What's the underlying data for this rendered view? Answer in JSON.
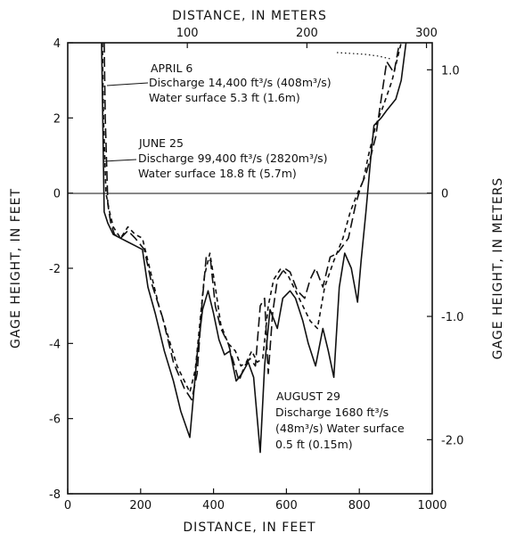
{
  "chart_data": {
    "type": "line",
    "xlabel": "DISTANCE, IN FEET",
    "ylabel": "GAGE HEIGHT, IN FEET",
    "x2label": "DISTANCE, IN METERS",
    "y2label": "GAGE HEIGHT, IN METERS",
    "xlim": [
      0,
      1000
    ],
    "ylim": [
      -8,
      4
    ],
    "xticks": [
      "0",
      "200",
      "400",
      "600",
      "800",
      "1000"
    ],
    "yticks": [
      "-8",
      "-6",
      "-4",
      "-2",
      "0",
      "2",
      "4"
    ],
    "x2ticks": [
      "100",
      "200",
      "300"
    ],
    "y2ticks": [
      "1.0",
      "0",
      "-1.0",
      "-2.0"
    ],
    "grid": false,
    "series": [
      {
        "name": "APRIL 6",
        "style": "dash-long",
        "points": [
          [
            100,
            4
          ],
          [
            103,
            2
          ],
          [
            110,
            -0.3
          ],
          [
            118,
            -0.8
          ],
          [
            128,
            -1.1
          ],
          [
            145,
            -1.2
          ],
          [
            165,
            -1.0
          ],
          [
            185,
            -1.2
          ],
          [
            210,
            -1.5
          ],
          [
            230,
            -2.4
          ],
          [
            260,
            -3.3
          ],
          [
            290,
            -4.5
          ],
          [
            320,
            -5.2
          ],
          [
            340,
            -5.5
          ],
          [
            355,
            -4.8
          ],
          [
            368,
            -3.0
          ],
          [
            380,
            -1.7
          ],
          [
            392,
            -1.8
          ],
          [
            405,
            -3.0
          ],
          [
            420,
            -3.6
          ],
          [
            440,
            -4.0
          ],
          [
            455,
            -4.5
          ],
          [
            470,
            -5.0
          ],
          [
            485,
            -4.6
          ],
          [
            500,
            -4.4
          ],
          [
            515,
            -4.6
          ],
          [
            528,
            -3.0
          ],
          [
            540,
            -2.8
          ],
          [
            550,
            -4.8
          ],
          [
            562,
            -3.2
          ],
          [
            575,
            -2.3
          ],
          [
            595,
            -2.0
          ],
          [
            610,
            -2.1
          ],
          [
            630,
            -2.6
          ],
          [
            650,
            -2.8
          ],
          [
            665,
            -2.3
          ],
          [
            680,
            -2.0
          ],
          [
            700,
            -2.5
          ],
          [
            720,
            -1.7
          ],
          [
            740,
            -1.6
          ],
          [
            770,
            -1.2
          ],
          [
            790,
            -0.3
          ],
          [
            805,
            0.2
          ],
          [
            818,
            0.5
          ],
          [
            832,
            1.0
          ],
          [
            845,
            1.5
          ],
          [
            860,
            2.5
          ],
          [
            875,
            3.5
          ],
          [
            895,
            3.2
          ],
          [
            910,
            4
          ]
        ]
      },
      {
        "name": "JUNE 25",
        "style": "dash-short",
        "points": [
          [
            95,
            4
          ],
          [
            98,
            2
          ],
          [
            105,
            0
          ],
          [
            115,
            -0.5
          ],
          [
            125,
            -0.9
          ],
          [
            145,
            -1.2
          ],
          [
            165,
            -0.9
          ],
          [
            185,
            -1.1
          ],
          [
            205,
            -1.2
          ],
          [
            225,
            -2.0
          ],
          [
            250,
            -3.0
          ],
          [
            275,
            -3.8
          ],
          [
            300,
            -4.6
          ],
          [
            320,
            -5.0
          ],
          [
            335,
            -5.3
          ],
          [
            350,
            -4.7
          ],
          [
            362,
            -3.5
          ],
          [
            375,
            -2.2
          ],
          [
            390,
            -1.6
          ],
          [
            405,
            -2.5
          ],
          [
            420,
            -3.5
          ],
          [
            440,
            -4.0
          ],
          [
            460,
            -4.2
          ],
          [
            475,
            -4.6
          ],
          [
            490,
            -4.5
          ],
          [
            505,
            -4.2
          ],
          [
            520,
            -4.5
          ],
          [
            535,
            -4.4
          ],
          [
            550,
            -3.0
          ],
          [
            565,
            -2.3
          ],
          [
            585,
            -2.0
          ],
          [
            605,
            -2.2
          ],
          [
            625,
            -2.6
          ],
          [
            645,
            -3.0
          ],
          [
            665,
            -3.4
          ],
          [
            685,
            -3.6
          ],
          [
            705,
            -2.5
          ],
          [
            730,
            -1.8
          ],
          [
            755,
            -1.2
          ],
          [
            775,
            -0.5
          ],
          [
            795,
            0
          ],
          [
            810,
            0.3
          ],
          [
            825,
            1.0
          ],
          [
            845,
            1.8
          ],
          [
            865,
            2.3
          ],
          [
            890,
            3.0
          ],
          [
            915,
            4
          ]
        ]
      },
      {
        "name": "AUGUST 29",
        "style": "solid",
        "points": [
          [
            93,
            4
          ],
          [
            96,
            2
          ],
          [
            100,
            -0.5
          ],
          [
            110,
            -0.8
          ],
          [
            125,
            -1.1
          ],
          [
            145,
            -1.2
          ],
          [
            165,
            -1.3
          ],
          [
            185,
            -1.4
          ],
          [
            205,
            -1.5
          ],
          [
            220,
            -2.5
          ],
          [
            240,
            -3.2
          ],
          [
            265,
            -4.2
          ],
          [
            290,
            -5.0
          ],
          [
            310,
            -5.8
          ],
          [
            335,
            -6.5
          ],
          [
            355,
            -4.3
          ],
          [
            370,
            -3.1
          ],
          [
            385,
            -2.6
          ],
          [
            400,
            -3.2
          ],
          [
            415,
            -3.9
          ],
          [
            430,
            -4.3
          ],
          [
            445,
            -4.2
          ],
          [
            462,
            -5.0
          ],
          [
            478,
            -4.8
          ],
          [
            495,
            -4.5
          ],
          [
            510,
            -4.9
          ],
          [
            528,
            -6.9
          ],
          [
            540,
            -4.6
          ],
          [
            555,
            -3.1
          ],
          [
            575,
            -3.6
          ],
          [
            590,
            -2.8
          ],
          [
            610,
            -2.6
          ],
          [
            625,
            -2.8
          ],
          [
            645,
            -3.4
          ],
          [
            660,
            -4.0
          ],
          [
            680,
            -4.6
          ],
          [
            700,
            -3.6
          ],
          [
            715,
            -4.2
          ],
          [
            730,
            -4.9
          ],
          [
            745,
            -2.5
          ],
          [
            760,
            -1.6
          ],
          [
            778,
            -2.0
          ],
          [
            795,
            -2.9
          ],
          [
            805,
            -1.8
          ],
          [
            818,
            -0.5
          ],
          [
            830,
            0.8
          ],
          [
            840,
            1.8
          ],
          [
            860,
            2.0
          ],
          [
            875,
            2.2
          ],
          [
            900,
            2.5
          ],
          [
            915,
            3.0
          ],
          [
            928,
            4
          ]
        ]
      }
    ],
    "annotations": {
      "april": [
        "APRIL 6",
        "Discharge 14,400 ft³/s (408m³/s)",
        "Water surface 5.3 ft (1.6m)"
      ],
      "june": [
        "JUNE 25",
        "Discharge 99,400 ft³/s (2820m³/s)",
        "Water surface 18.8 ft (5.7m)"
      ],
      "august": [
        "AUGUST 29",
        "Discharge 1680 ft³/s",
        "(48m³/s) Water surface",
        "0.5 ft (0.15m)"
      ]
    }
  }
}
